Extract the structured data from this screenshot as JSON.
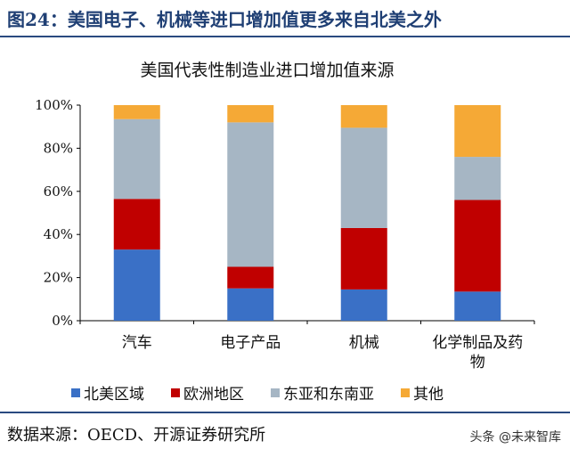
{
  "figure": {
    "title": "图24：美国电子、机械等进口增加值更多来自北美之外",
    "source": "数据来源：OECD、开源证券研究所",
    "watermark": "头条 @未来智库"
  },
  "chart_data": {
    "type": "bar",
    "stacked": true,
    "title": "美国代表性制造业进口增加值来源",
    "categories": [
      "汽车",
      "电子产品",
      "机械",
      "化学制品及药物"
    ],
    "series": [
      {
        "name": "北美区域",
        "color": "#3a70c6",
        "values": [
          33,
          15,
          14.5,
          13.5
        ]
      },
      {
        "name": "欧洲地区",
        "color": "#c00000",
        "values": [
          23.5,
          10,
          28.5,
          42.5
        ]
      },
      {
        "name": "东亚和东南亚",
        "color": "#a6b6c4",
        "values": [
          37,
          67,
          46.5,
          20
        ]
      },
      {
        "name": "其他",
        "color": "#f5a936",
        "values": [
          6.5,
          8,
          10.5,
          24
        ]
      }
    ],
    "ylim": [
      0,
      100
    ],
    "yticks": [
      "0%",
      "20%",
      "40%",
      "60%",
      "80%",
      "100%"
    ],
    "legend_position": "bottom",
    "grid": false
  }
}
